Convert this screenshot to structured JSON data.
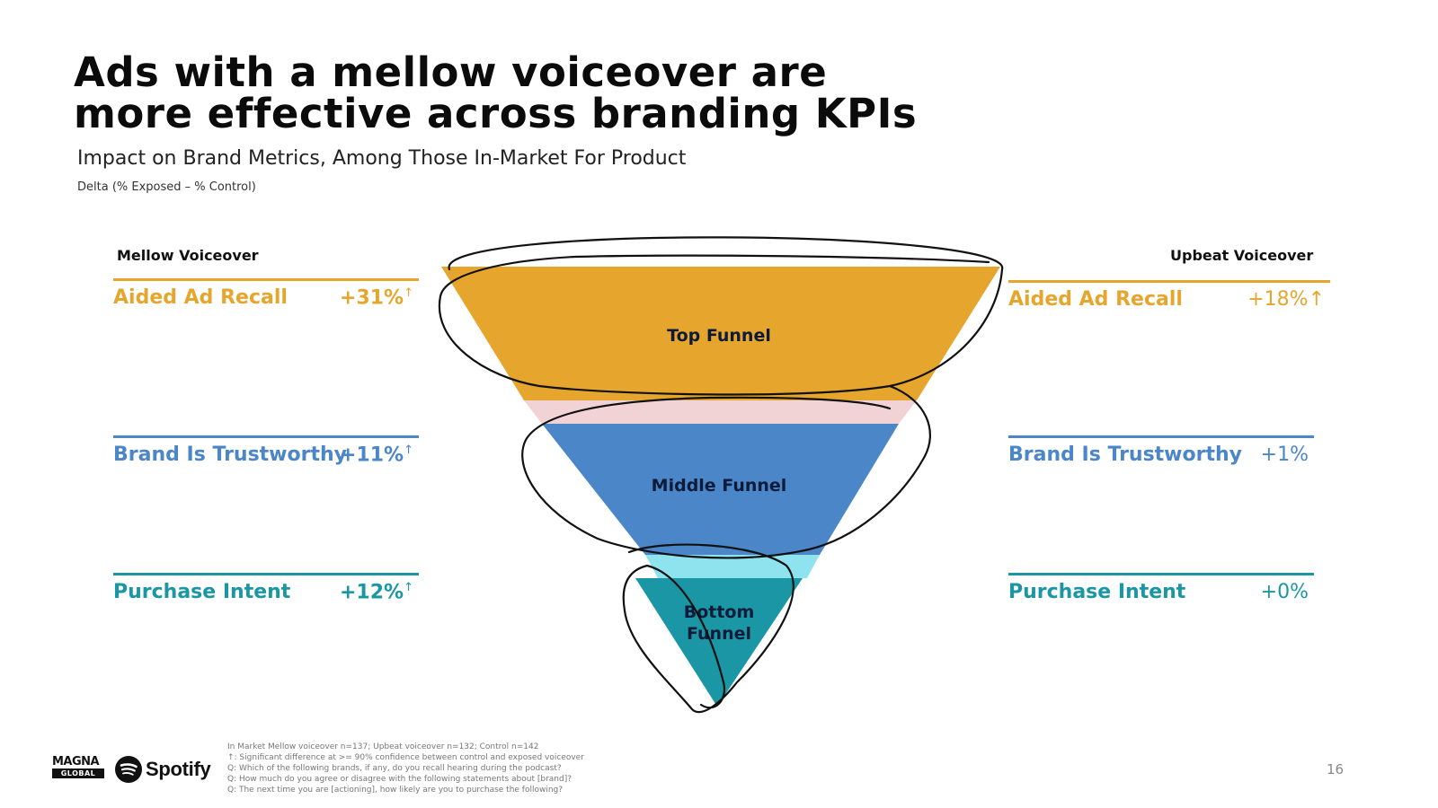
{
  "title": "Ads with a mellow voiceover are more effective across branding KPIs",
  "subtitle": "Impact on Brand Metrics, Among Those In-Market For Product",
  "note": "Delta (% Exposed – % Control)",
  "left": {
    "heading": "Mellow Voiceover",
    "metrics": [
      {
        "label": "Aided Ad Recall",
        "value": "+31%",
        "sig": "↑"
      },
      {
        "label": "Brand Is Trustworthy",
        "value": "+11%",
        "sig": "↑"
      },
      {
        "label": "Purchase Intent",
        "value": "+12%",
        "sig": "↑"
      }
    ]
  },
  "right": {
    "heading": "Upbeat Voiceover",
    "metrics": [
      {
        "label": "Aided Ad Recall",
        "value": "+18%↑"
      },
      {
        "label": "Brand Is Trustworthy",
        "value": "+1%"
      },
      {
        "label": "Purchase Intent",
        "value": "+0%"
      }
    ]
  },
  "funnel": {
    "top": "Top Funnel",
    "middle": "Middle Funnel",
    "bottom_line1": "Bottom",
    "bottom_line2": "Funnel"
  },
  "colors": {
    "top": "#E6A62E",
    "middle": "#4A86C8",
    "bottom": "#1A96A5",
    "connector_top": "#F2D3D5",
    "connector_bottom": "#8FE3EE"
  },
  "footnotes": [
    "In Market Mellow voiceover n=137; Upbeat voiceover n=132; Control n=142",
    "↑: Significant difference at >= 90% confidence between control and exposed voiceover",
    "Q: Which of the following brands, if any, do you recall hearing during the podcast?",
    "Q: How much do you agree or disagree with the following statements about [brand]?",
    "Q: The next time you are [actioning], how likely are you to purchase the following?"
  ],
  "page_number": "16",
  "logos": {
    "magna_line1": "MAGNA",
    "magna_line2": "GLOBAL",
    "spotify": "Spotify"
  }
}
